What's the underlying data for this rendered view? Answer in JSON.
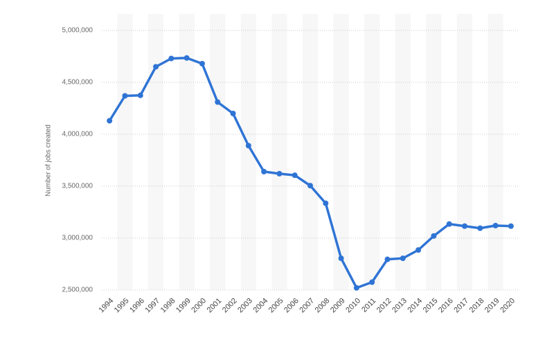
{
  "chart_data": {
    "type": "line",
    "y_label": "Number of jobs created",
    "categories": [
      "1994",
      "1995",
      "1996",
      "1997",
      "1998",
      "1999",
      "2000",
      "2001",
      "2002",
      "2003",
      "2004",
      "2005",
      "2006",
      "2007",
      "2008",
      "2009",
      "2010",
      "2011",
      "2012",
      "2013",
      "2014",
      "2015",
      "2016",
      "2017",
      "2018",
      "2019",
      "2020"
    ],
    "values": [
      4130000,
      4370000,
      4375000,
      4650000,
      4730000,
      4735000,
      4680000,
      4310000,
      4200000,
      3890000,
      3640000,
      3620000,
      3605000,
      3505000,
      3335000,
      2805000,
      2520000,
      2575000,
      2795000,
      2805000,
      2885000,
      3020000,
      3135000,
      3115000,
      3095000,
      3120000,
      3115000
    ],
    "color": "#2f74d5",
    "ylim": [
      2500000,
      5000000
    ],
    "yticks": [
      {
        "value": 2500000,
        "label": "2,500,000"
      },
      {
        "value": 3000000,
        "label": "3,000,000"
      },
      {
        "value": 3500000,
        "label": "3,500,000"
      },
      {
        "value": 4000000,
        "label": "4,000,000"
      },
      {
        "value": 4500000,
        "label": "4,500,000"
      },
      {
        "value": 5000000,
        "label": "5,000,000"
      }
    ],
    "grid": true
  }
}
